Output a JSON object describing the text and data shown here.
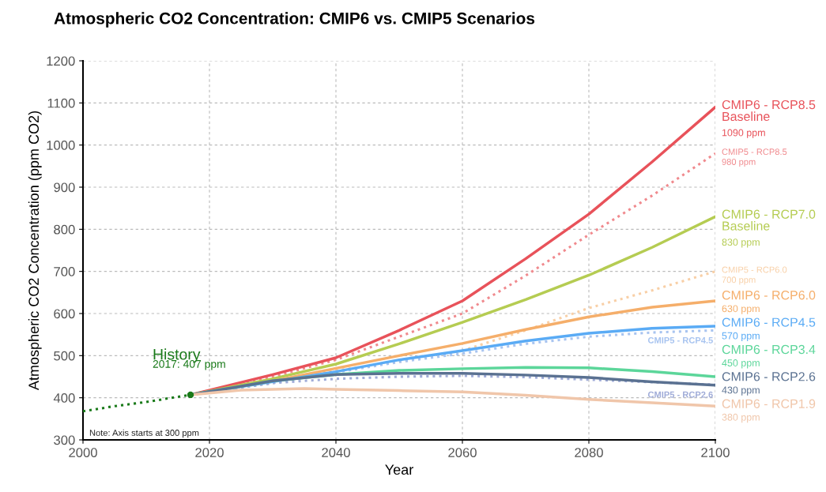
{
  "chart_data": {
    "type": "line",
    "title": "Atmospheric CO2 Concentration: CMIP6 vs. CMIP5 Scenarios",
    "xlabel": "Year",
    "ylabel": "Atmospheric CO2 Concentration (ppm CO2)",
    "xlim": [
      2000,
      2100
    ],
    "xticks": [
      2000,
      2020,
      2040,
      2060,
      2080,
      2100
    ],
    "ylim": [
      300,
      1200
    ],
    "yticks": [
      300,
      400,
      500,
      600,
      700,
      800,
      900,
      1000,
      1100,
      1200
    ],
    "grid": true,
    "legend": false,
    "annotations": [
      "History",
      {
        "text": "2017: 407 ppm",
        "x": 2017,
        "y": 407
      },
      "Note: Axis starts at 300 ppm"
    ],
    "series": [
      {
        "color": "#1a7a1a",
        "line_style": "dotted",
        "x": [
          2000,
          2005,
          2010,
          2017
        ],
        "values": [
          368,
          380,
          390,
          407
        ]
      },
      {
        "name": "CMIP6 - RCP8.5\nBaseline",
        "color": "#e8525a",
        "line_style": "solid",
        "x": [
          2017,
          2030,
          2040,
          2050,
          2060,
          2070,
          2080,
          2090,
          2100
        ],
        "values": [
          407,
          455,
          495,
          560,
          630,
          730,
          836,
          960,
          1090
        ],
        "value_labels": [
          null,
          null,
          null,
          null,
          null,
          null,
          null,
          null,
          "1090 ppm"
        ]
      },
      {
        "name": "CMIP5 - RCP8.5",
        "color": "#f08a8e",
        "line_style": "dotted",
        "x": [
          2017,
          2030,
          2040,
          2050,
          2060,
          2070,
          2080,
          2090,
          2100
        ],
        "values": [
          407,
          450,
          490,
          545,
          600,
          690,
          787,
          880,
          980
        ],
        "value_labels": [
          null,
          null,
          null,
          null,
          null,
          null,
          null,
          null,
          "980 ppm"
        ]
      },
      {
        "name": "CMIP6 - RCP7.0\nBaseline",
        "color": "#b5cc52",
        "line_style": "solid",
        "x": [
          2017,
          2030,
          2040,
          2050,
          2060,
          2070,
          2080,
          2090,
          2100
        ],
        "values": [
          407,
          445,
          480,
          528,
          579,
          633,
          691,
          757,
          830
        ],
        "value_labels": [
          null,
          null,
          null,
          null,
          null,
          null,
          null,
          null,
          "830 ppm"
        ]
      },
      {
        "name": "CMIP5 - RCP6.0",
        "color": "#f8cfa6",
        "line_style": "dotted",
        "x": [
          2017,
          2030,
          2040,
          2050,
          2060,
          2070,
          2080,
          2090,
          2100
        ],
        "values": [
          407,
          435,
          465,
          485,
          512,
          560,
          613,
          655,
          700
        ],
        "value_labels": [
          null,
          null,
          null,
          null,
          null,
          null,
          null,
          null,
          "700 ppm"
        ]
      },
      {
        "name": "CMIP6 - RCP6.0",
        "color": "#f5ae6a",
        "line_style": "solid",
        "x": [
          2017,
          2030,
          2040,
          2050,
          2060,
          2070,
          2080,
          2090,
          2100
        ],
        "values": [
          407,
          440,
          470,
          500,
          529,
          562,
          592,
          615,
          630
        ],
        "value_labels": [
          null,
          null,
          null,
          null,
          null,
          null,
          null,
          null,
          "630 ppm"
        ]
      },
      {
        "name": "CMIP5 - RCP4.5",
        "color": "#a8c4f0",
        "line_style": "dotted",
        "x": [
          2017,
          2030,
          2040,
          2050,
          2060,
          2070,
          2080,
          2090,
          2100
        ],
        "values": [
          407,
          435,
          460,
          485,
          505,
          528,
          545,
          555,
          560
        ]
      },
      {
        "name": "CMIP6 - RCP4.5",
        "color": "#5aabf5",
        "line_style": "solid",
        "x": [
          2017,
          2030,
          2040,
          2050,
          2060,
          2070,
          2080,
          2090,
          2100
        ],
        "values": [
          407,
          438,
          462,
          490,
          512,
          535,
          553,
          565,
          570
        ],
        "value_labels": [
          null,
          null,
          null,
          null,
          null,
          null,
          null,
          null,
          "570 ppm"
        ]
      },
      {
        "name": "CMIP6 - RCP3.4",
        "color": "#5cd69a",
        "line_style": "solid",
        "x": [
          2017,
          2030,
          2040,
          2050,
          2060,
          2070,
          2080,
          2090,
          2100
        ],
        "values": [
          407,
          440,
          455,
          465,
          469,
          472,
          471,
          462,
          450
        ],
        "value_labels": [
          null,
          null,
          null,
          null,
          null,
          null,
          null,
          null,
          "450 ppm"
        ]
      },
      {
        "name": "CMIP5 - RCP2.6",
        "color": "#a0acd8",
        "line_style": "dotted",
        "x": [
          2017,
          2030,
          2040,
          2050,
          2060,
          2070,
          2080,
          2090,
          2100
        ],
        "values": [
          407,
          435,
          445,
          450,
          452,
          449,
          443,
          437,
          431
        ]
      },
      {
        "name": "CMIP6 - RCP2.6",
        "color": "#5a7191",
        "line_style": "solid",
        "x": [
          2017,
          2030,
          2040,
          2050,
          2060,
          2070,
          2080,
          2090,
          2100
        ],
        "values": [
          407,
          440,
          455,
          458,
          458,
          454,
          448,
          438,
          430
        ],
        "value_labels": [
          null,
          null,
          null,
          null,
          null,
          null,
          null,
          null,
          "430 ppm"
        ]
      },
      {
        "name": "CMIP6 - RCP1.9",
        "color": "#f0c6aa",
        "line_style": "solid",
        "x": [
          2017,
          2025,
          2035,
          2040,
          2050,
          2060,
          2070,
          2080,
          2090,
          2100
        ],
        "values": [
          407,
          418,
          422,
          420,
          417,
          414,
          406,
          396,
          388,
          380
        ],
        "value_labels": [
          null,
          null,
          null,
          null,
          null,
          null,
          null,
          null,
          null,
          "380 ppm"
        ]
      }
    ]
  }
}
